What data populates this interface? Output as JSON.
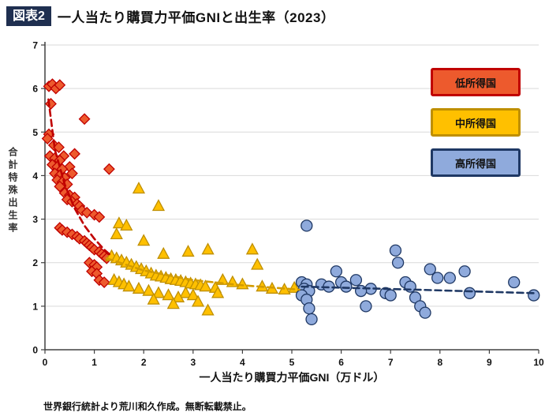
{
  "header": {
    "badge": "図表2",
    "title": "一人当たり購買力平価GNIと出生率（2023）"
  },
  "footer": {
    "credit": "世界銀行統計より荒川和久作成。無断転載禁止。"
  },
  "legend": {
    "items": [
      {
        "label": "低所得国",
        "fill": "#ED5A2D",
        "border": "#C00000"
      },
      {
        "label": "中所得国",
        "fill": "#FFC000",
        "border": "#BF8F00"
      },
      {
        "label": "高所得国",
        "fill": "#8FAADC",
        "border": "#1F3864"
      }
    ]
  },
  "chart_data": {
    "type": "scatter",
    "title": "一人当たり購買力平価GNIと出生率（2023）",
    "xlabel": "一人当たり購買力平価GNI（万ドル）",
    "ylabel": "合計特殊出生率",
    "xlim": [
      0,
      10
    ],
    "ylim": [
      0,
      7
    ],
    "xticks": [
      0,
      1,
      2,
      3,
      4,
      5,
      6,
      7,
      8,
      9,
      10
    ],
    "yticks": [
      0,
      1,
      2,
      3,
      4,
      5,
      6,
      7
    ],
    "grid": "horizontal",
    "legend_position": "top-right",
    "series": [
      {
        "name": "低所得国",
        "marker": "diamond",
        "fill": "#ED5A2D",
        "stroke": "#C00000",
        "trend_color": "#C00000",
        "points": [
          [
            0.08,
            6.05
          ],
          [
            0.15,
            6.1
          ],
          [
            0.22,
            6.0
          ],
          [
            0.3,
            6.08
          ],
          [
            0.12,
            5.65
          ],
          [
            0.8,
            5.3
          ],
          [
            0.08,
            4.95
          ],
          [
            0.05,
            4.85
          ],
          [
            0.18,
            4.7
          ],
          [
            0.28,
            4.65
          ],
          [
            0.6,
            4.5
          ],
          [
            0.1,
            4.45
          ],
          [
            0.38,
            4.45
          ],
          [
            0.2,
            4.4
          ],
          [
            0.3,
            4.35
          ],
          [
            0.15,
            4.25
          ],
          [
            0.5,
            4.2
          ],
          [
            0.25,
            4.2
          ],
          [
            0.35,
            4.15
          ],
          [
            1.3,
            4.15
          ],
          [
            0.2,
            4.05
          ],
          [
            0.55,
            4.05
          ],
          [
            0.3,
            4.0
          ],
          [
            0.4,
            3.95
          ],
          [
            0.25,
            3.9
          ],
          [
            0.35,
            3.85
          ],
          [
            0.45,
            3.8
          ],
          [
            0.3,
            3.75
          ],
          [
            0.4,
            3.6
          ],
          [
            0.5,
            3.55
          ],
          [
            0.6,
            3.5
          ],
          [
            0.45,
            3.45
          ],
          [
            0.55,
            3.4
          ],
          [
            0.65,
            3.35
          ],
          [
            0.7,
            3.3
          ],
          [
            0.75,
            3.2
          ],
          [
            0.85,
            3.15
          ],
          [
            1.0,
            3.1
          ],
          [
            1.1,
            3.05
          ],
          [
            0.3,
            2.8
          ],
          [
            0.35,
            2.75
          ],
          [
            0.45,
            2.7
          ],
          [
            0.55,
            2.65
          ],
          [
            0.65,
            2.6
          ],
          [
            0.7,
            2.55
          ],
          [
            0.8,
            2.5
          ],
          [
            0.85,
            2.45
          ],
          [
            0.9,
            2.4
          ],
          [
            0.95,
            2.35
          ],
          [
            1.0,
            2.3
          ],
          [
            1.1,
            2.25
          ],
          [
            1.15,
            2.2
          ],
          [
            1.2,
            2.15
          ],
          [
            1.25,
            2.1
          ],
          [
            0.9,
            2.0
          ],
          [
            1.0,
            1.95
          ],
          [
            1.05,
            1.9
          ],
          [
            0.95,
            1.8
          ],
          [
            1.05,
            1.75
          ],
          [
            1.1,
            1.6
          ],
          [
            1.2,
            1.55
          ]
        ],
        "trend": [
          [
            0.07,
            5.75
          ],
          [
            0.2,
            4.6
          ],
          [
            0.4,
            3.8
          ],
          [
            0.6,
            3.25
          ],
          [
            0.8,
            2.85
          ],
          [
            1.0,
            2.55
          ],
          [
            1.2,
            2.3
          ],
          [
            1.35,
            2.15
          ]
        ]
      },
      {
        "name": "中所得国",
        "marker": "triangle",
        "fill": "#FFC000",
        "stroke": "#BF8F00",
        "trend_color": "#D29B00",
        "points": [
          [
            1.9,
            3.7
          ],
          [
            2.3,
            3.3
          ],
          [
            1.5,
            2.9
          ],
          [
            1.65,
            2.85
          ],
          [
            1.45,
            2.65
          ],
          [
            2.0,
            2.5
          ],
          [
            2.9,
            2.25
          ],
          [
            3.3,
            2.3
          ],
          [
            4.2,
            2.3
          ],
          [
            2.4,
            2.2
          ],
          [
            1.35,
            2.15
          ],
          [
            1.45,
            2.1
          ],
          [
            1.55,
            2.05
          ],
          [
            1.65,
            2.0
          ],
          [
            4.3,
            1.95
          ],
          [
            1.75,
            1.95
          ],
          [
            1.85,
            1.9
          ],
          [
            1.95,
            1.85
          ],
          [
            2.05,
            1.8
          ],
          [
            2.15,
            1.75
          ],
          [
            2.25,
            1.7
          ],
          [
            2.35,
            1.68
          ],
          [
            2.45,
            1.65
          ],
          [
            2.55,
            1.62
          ],
          [
            3.6,
            1.6
          ],
          [
            2.65,
            1.6
          ],
          [
            2.75,
            1.58
          ],
          [
            2.85,
            1.55
          ],
          [
            3.8,
            1.55
          ],
          [
            2.95,
            1.52
          ],
          [
            3.05,
            1.5
          ],
          [
            4.0,
            1.5
          ],
          [
            3.15,
            1.48
          ],
          [
            3.25,
            1.45
          ],
          [
            4.4,
            1.45
          ],
          [
            3.45,
            1.42
          ],
          [
            5.05,
            1.42
          ],
          [
            4.6,
            1.4
          ],
          [
            4.85,
            1.38
          ],
          [
            1.4,
            1.6
          ],
          [
            1.5,
            1.55
          ],
          [
            1.6,
            1.5
          ],
          [
            1.7,
            1.45
          ],
          [
            1.9,
            1.4
          ],
          [
            2.1,
            1.35
          ],
          [
            3.5,
            1.3
          ],
          [
            2.3,
            1.3
          ],
          [
            2.85,
            1.3
          ],
          [
            3.0,
            1.25
          ],
          [
            2.5,
            1.25
          ],
          [
            2.7,
            1.2
          ],
          [
            2.2,
            1.15
          ],
          [
            3.1,
            1.1
          ],
          [
            2.6,
            1.05
          ],
          [
            3.3,
            0.9
          ]
        ],
        "trend": [
          [
            1.25,
            2.1
          ],
          [
            2.0,
            1.82
          ],
          [
            3.0,
            1.6
          ],
          [
            4.0,
            1.48
          ],
          [
            5.15,
            1.38
          ]
        ]
      },
      {
        "name": "高所得国",
        "marker": "circle",
        "fill": "#8FAADC",
        "stroke": "#1F3864",
        "trend_color": "#1F3864",
        "points": [
          [
            5.3,
            2.85
          ],
          [
            7.1,
            2.28
          ],
          [
            7.15,
            2.0
          ],
          [
            5.9,
            1.8
          ],
          [
            8.5,
            1.8
          ],
          [
            7.8,
            1.85
          ],
          [
            7.95,
            1.65
          ],
          [
            8.2,
            1.65
          ],
          [
            6.3,
            1.6
          ],
          [
            5.2,
            1.55
          ],
          [
            6.0,
            1.55
          ],
          [
            7.3,
            1.55
          ],
          [
            9.5,
            1.55
          ],
          [
            5.3,
            1.5
          ],
          [
            5.6,
            1.5
          ],
          [
            5.75,
            1.45
          ],
          [
            6.1,
            1.45
          ],
          [
            7.4,
            1.45
          ],
          [
            5.25,
            1.4
          ],
          [
            6.6,
            1.4
          ],
          [
            5.35,
            1.35
          ],
          [
            6.4,
            1.35
          ],
          [
            6.9,
            1.3
          ],
          [
            8.6,
            1.3
          ],
          [
            5.2,
            1.25
          ],
          [
            7.0,
            1.25
          ],
          [
            9.9,
            1.25
          ],
          [
            7.5,
            1.2
          ],
          [
            5.3,
            1.15
          ],
          [
            6.5,
            1.0
          ],
          [
            7.6,
            1.0
          ],
          [
            5.35,
            0.95
          ],
          [
            7.7,
            0.85
          ],
          [
            5.4,
            0.7
          ]
        ],
        "trend": [
          [
            5.2,
            1.45
          ],
          [
            7.5,
            1.38
          ],
          [
            9.9,
            1.3
          ]
        ]
      }
    ]
  }
}
